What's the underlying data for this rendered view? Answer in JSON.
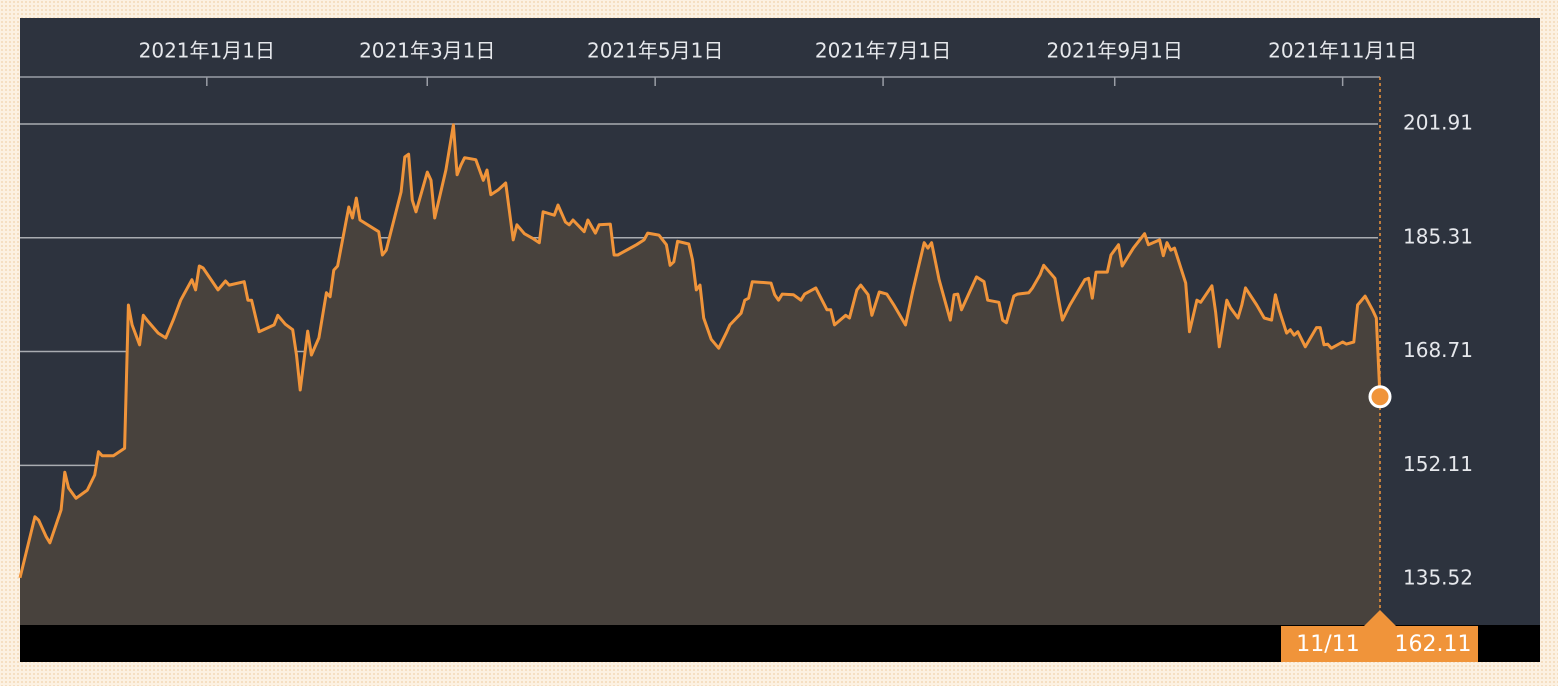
{
  "chart_data": {
    "type": "area",
    "color": "#f0943a",
    "fill_color": "#48423d",
    "grid": true,
    "annotation": "11/11",
    "xlim": [
      "2020-11-12",
      "2021-11-11"
    ],
    "xticks": [
      {
        "value": "2021-01-01",
        "label": "2021年1月1日"
      },
      {
        "value": "2021-03-01",
        "label": "2021年3月1日"
      },
      {
        "value": "2021-05-01",
        "label": "2021年5月1日"
      },
      {
        "value": "2021-07-01",
        "label": "2021年7月1日"
      },
      {
        "value": "2021-09-01",
        "label": "2021年9月1日"
      },
      {
        "value": "2021-11-01",
        "label": "2021年11月1日"
      }
    ],
    "ylim": [
      128.81,
      217.38
    ],
    "yticks": [
      135.52,
      152.11,
      168.71,
      185.31,
      201.91
    ],
    "x": [
      "2020-11-12",
      "2020-11-16",
      "2020-11-17",
      "2020-11-19",
      "2020-11-20",
      "2020-11-23",
      "2020-11-24",
      "2020-11-25",
      "2020-11-27",
      "2020-11-30",
      "2020-12-02",
      "2020-12-03",
      "2020-12-04",
      "2020-12-07",
      "2020-12-10",
      "2020-12-11",
      "2020-12-12",
      "2020-12-14",
      "2020-12-15",
      "2020-12-16",
      "2020-12-19",
      "2020-12-21",
      "2020-12-23",
      "2020-12-25",
      "2020-12-28",
      "2020-12-29",
      "2020-12-30",
      "2020-12-31",
      "2021-01-04",
      "2021-01-06",
      "2021-01-07",
      "2021-01-11",
      "2021-01-12",
      "2021-01-13",
      "2021-01-15",
      "2021-01-19",
      "2021-01-20",
      "2021-01-22",
      "2021-01-24",
      "2021-01-25",
      "2021-01-26",
      "2021-01-28",
      "2021-01-29",
      "2021-01-31",
      "2021-02-02",
      "2021-02-03",
      "2021-02-04",
      "2021-02-05",
      "2021-02-08",
      "2021-02-09",
      "2021-02-10",
      "2021-02-11",
      "2021-02-16",
      "2021-02-17",
      "2021-02-18",
      "2021-02-22",
      "2021-02-23",
      "2021-02-24",
      "2021-02-25",
      "2021-02-26",
      "2021-03-01",
      "2021-03-02",
      "2021-03-03",
      "2021-03-06",
      "2021-03-08",
      "2021-03-09",
      "2021-03-10",
      "2021-03-11",
      "2021-03-14",
      "2021-03-16",
      "2021-03-17",
      "2021-03-18",
      "2021-03-20",
      "2021-03-22",
      "2021-03-24",
      "2021-03-25",
      "2021-03-27",
      "2021-03-29",
      "2021-03-31",
      "2021-04-01",
      "2021-04-04",
      "2021-04-05",
      "2021-04-07",
      "2021-04-08",
      "2021-04-09",
      "2021-04-12",
      "2021-04-13",
      "2021-04-15",
      "2021-04-16",
      "2021-04-19",
      "2021-04-20",
      "2021-04-21",
      "2021-04-26",
      "2021-04-28",
      "2021-04-29",
      "2021-05-02",
      "2021-05-04",
      "2021-05-05",
      "2021-05-06",
      "2021-05-07",
      "2021-05-10",
      "2021-05-11",
      "2021-05-12",
      "2021-05-13",
      "2021-05-14",
      "2021-05-16",
      "2021-05-18",
      "2021-05-20",
      "2021-05-21",
      "2021-05-24",
      "2021-05-25",
      "2021-05-26",
      "2021-05-27",
      "2021-06-01",
      "2021-06-02",
      "2021-06-03",
      "2021-06-04",
      "2021-06-07",
      "2021-06-09",
      "2021-06-10",
      "2021-06-13",
      "2021-06-16",
      "2021-06-17",
      "2021-06-18",
      "2021-06-21",
      "2021-06-22",
      "2021-06-24",
      "2021-06-25",
      "2021-06-27",
      "2021-06-28",
      "2021-06-30",
      "2021-07-02",
      "2021-07-04",
      "2021-07-07",
      "2021-07-09",
      "2021-07-12",
      "2021-07-13",
      "2021-07-14",
      "2021-07-16",
      "2021-07-19",
      "2021-07-20",
      "2021-07-21",
      "2021-07-22",
      "2021-07-26",
      "2021-07-28",
      "2021-07-29",
      "2021-08-01",
      "2021-08-02",
      "2021-08-03",
      "2021-08-05",
      "2021-08-06",
      "2021-08-09",
      "2021-08-10",
      "2021-08-12",
      "2021-08-13",
      "2021-08-16",
      "2021-08-17",
      "2021-08-18",
      "2021-08-20",
      "2021-08-24",
      "2021-08-25",
      "2021-08-26",
      "2021-08-27",
      "2021-08-30",
      "2021-08-31",
      "2021-09-02",
      "2021-09-03",
      "2021-09-06",
      "2021-09-09",
      "2021-09-10",
      "2021-09-13",
      "2021-09-14",
      "2021-09-15",
      "2021-09-16",
      "2021-09-17",
      "2021-09-20",
      "2021-09-21",
      "2021-09-23",
      "2021-09-24",
      "2021-09-27",
      "2021-09-28",
      "2021-09-29",
      "2021-10-01",
      "2021-10-02",
      "2021-10-04",
      "2021-10-05",
      "2021-10-06",
      "2021-10-09",
      "2021-10-11",
      "2021-10-13",
      "2021-10-14",
      "2021-10-15",
      "2021-10-17",
      "2021-10-18",
      "2021-10-19",
      "2021-10-20",
      "2021-10-22",
      "2021-10-25",
      "2021-10-26",
      "2021-10-27",
      "2021-10-28",
      "2021-10-29",
      "2021-11-01",
      "2021-11-02",
      "2021-11-04",
      "2021-11-05",
      "2021-11-07",
      "2021-11-09",
      "2021-11-10",
      "2021-11-11"
    ],
    "values": [
      135.7,
      144.6,
      144.1,
      141.7,
      140.8,
      145.6,
      151.1,
      148.8,
      147.3,
      148.5,
      150.7,
      154.1,
      153.5,
      153.5,
      154.6,
      175.5,
      172.6,
      169.7,
      174.0,
      173.3,
      171.4,
      170.7,
      173.3,
      176.2,
      179.2,
      177.7,
      181.2,
      180.9,
      177.7,
      179.0,
      178.4,
      178.9,
      176.2,
      176.2,
      171.6,
      172.6,
      174.0,
      172.7,
      171.9,
      168.2,
      163.1,
      171.7,
      168.2,
      170.7,
      177.3,
      176.7,
      180.6,
      181.2,
      189.8,
      188.2,
      191.1,
      187.9,
      186.2,
      182.8,
      183.5,
      192.0,
      197.1,
      197.5,
      190.8,
      189.1,
      194.9,
      193.7,
      188.2,
      195.2,
      201.8,
      194.5,
      195.9,
      197.0,
      196.7,
      193.7,
      195.2,
      191.6,
      192.3,
      193.3,
      185.0,
      187.2,
      185.9,
      185.3,
      184.6,
      189.1,
      188.6,
      190.1,
      187.6,
      187.2,
      187.9,
      186.2,
      187.9,
      186.0,
      187.2,
      187.3,
      182.8,
      182.8,
      184.3,
      185.0,
      186.0,
      185.7,
      184.3,
      181.3,
      181.8,
      184.8,
      184.4,
      182.1,
      177.7,
      178.4,
      173.6,
      170.5,
      169.2,
      171.4,
      172.6,
      174.3,
      176.2,
      176.5,
      178.9,
      178.7,
      177.0,
      176.2,
      177.1,
      177.0,
      176.2,
      177.1,
      178.0,
      174.8,
      174.8,
      172.6,
      174.0,
      173.6,
      177.7,
      178.4,
      177.0,
      174.0,
      177.4,
      177.1,
      175.4,
      172.6,
      177.7,
      184.6,
      183.8,
      184.6,
      179.2,
      173.3,
      177.0,
      177.1,
      174.8,
      179.6,
      178.9,
      176.2,
      175.9,
      173.3,
      172.9,
      176.8,
      177.1,
      177.3,
      178.0,
      179.9,
      181.3,
      179.4,
      176.2,
      173.3,
      175.5,
      179.2,
      179.4,
      176.5,
      180.3,
      180.3,
      182.8,
      184.3,
      181.2,
      183.8,
      185.9,
      184.3,
      185.0,
      182.7,
      184.6,
      183.5,
      183.8,
      178.7,
      171.6,
      176.2,
      175.9,
      178.3,
      174.5,
      169.4,
      176.2,
      175.1,
      173.6,
      175.5,
      178.0,
      175.5,
      173.6,
      173.3,
      177.0,
      174.8,
      171.4,
      171.9,
      171.1,
      171.6,
      169.4,
      172.2,
      172.2,
      169.7,
      169.8,
      169.2,
      170.1,
      169.8,
      170.1,
      175.5,
      176.8,
      174.8,
      173.6,
      162.11
    ]
  }
}
